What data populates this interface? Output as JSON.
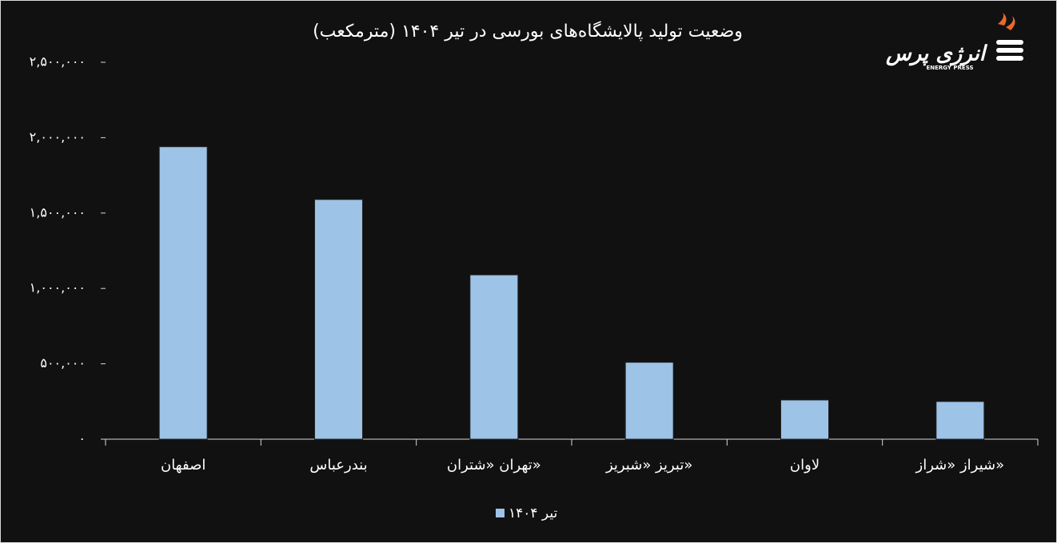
{
  "chart_data": {
    "type": "bar",
    "title": "وضعیت تولید پالایشگاه‌های بورسی در تیر ۱۴۰۴ (مترمکعب)",
    "logo": {
      "text": "انرژی پرس",
      "subtext": "ENERGY PRESS"
    },
    "categories": [
      "اصفهان",
      "بندرعباس",
      "تهران «شتران»",
      "تبریز «شبریز»",
      "لاوان",
      "شیراز «شراز»"
    ],
    "series": [
      {
        "name": "تیر ۱۴۰۴",
        "color": "#9dc3e6",
        "values": [
          1940000,
          1590000,
          1090000,
          510000,
          260000,
          250000
        ]
      }
    ],
    "ylim": [
      0,
      2500000
    ],
    "yticks": [
      {
        "value": 0,
        "label": "۰"
      },
      {
        "value": 500000,
        "label": "۵۰۰,۰۰۰"
      },
      {
        "value": 1000000,
        "label": "۱,۰۰۰,۰۰۰"
      },
      {
        "value": 1500000,
        "label": "۱,۵۰۰,۰۰۰"
      },
      {
        "value": 2000000,
        "label": "۲,۰۰۰,۰۰۰"
      },
      {
        "value": 2500000,
        "label": "۲,۵۰۰,۰۰۰"
      }
    ],
    "grid": false,
    "legend": "bottom"
  }
}
